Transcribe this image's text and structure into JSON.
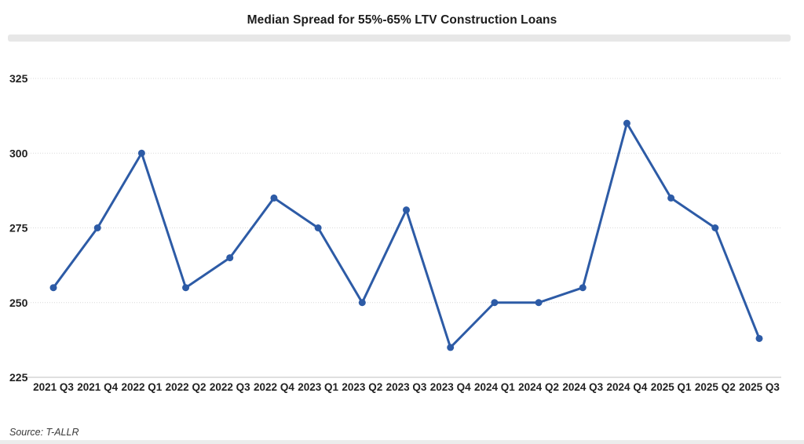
{
  "title": "Median Spread for 55%-65% LTV Construction Loans",
  "source_note": "Source: T-ALLR",
  "colors": {
    "line": "#2d5ba6",
    "point": "#2d5ba6",
    "grid": "#d9d9d9",
    "axis": "#bfbfbf",
    "tick_label": "#212121",
    "divider": "#e7e7e7",
    "bottom_strip": "#ececec"
  },
  "chart_data": {
    "type": "line",
    "title": "Median Spread for 55%-65% LTV Construction Loans",
    "xlabel": "",
    "ylabel": "",
    "categories": [
      "2021 Q3",
      "2021 Q4",
      "2022 Q1",
      "2022 Q2",
      "2022 Q3",
      "2022 Q4",
      "2023 Q1",
      "2023 Q2",
      "2023 Q3",
      "2023 Q4",
      "2024 Q1",
      "2024 Q2",
      "2024 Q3",
      "2024 Q4",
      "2025 Q1",
      "2025 Q2",
      "2025 Q3"
    ],
    "values": [
      255,
      275,
      300,
      255,
      265,
      285,
      275,
      250,
      281,
      235,
      250,
      250,
      255,
      310,
      285,
      275,
      238
    ],
    "ylim": [
      225,
      325
    ],
    "yticks": [
      225,
      250,
      275,
      300,
      325
    ],
    "grid": true,
    "legend": false,
    "source": "Source: T-ALLR"
  }
}
